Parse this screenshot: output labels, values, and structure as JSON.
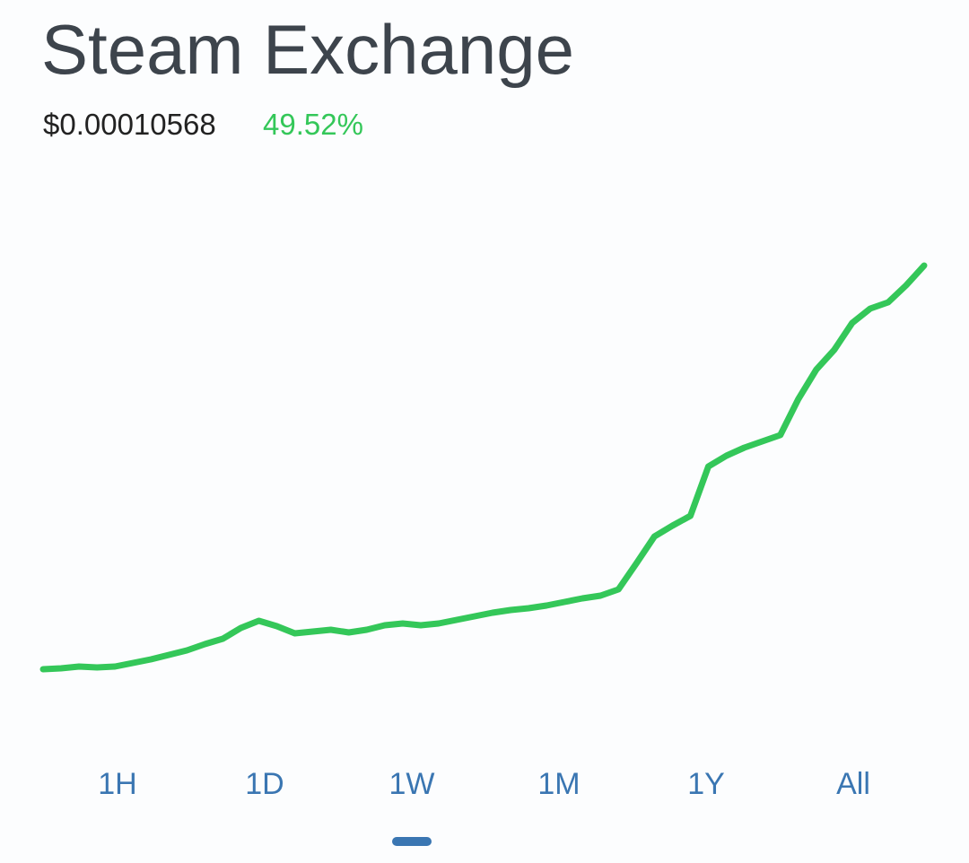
{
  "header": {
    "title": "Steam Exchange",
    "price": "$0.00010568",
    "change": "49.52%"
  },
  "chart_data": {
    "type": "line",
    "color": "#34c759",
    "values": [
      54,
      55,
      57,
      56,
      57,
      61,
      65,
      70,
      75,
      82,
      88,
      100,
      108,
      102,
      94,
      96,
      98,
      95,
      98,
      103,
      105,
      103,
      105,
      109,
      113,
      117,
      120,
      122,
      125,
      129,
      133,
      136,
      143,
      172,
      202,
      214,
      225,
      280,
      292,
      301,
      308,
      315,
      355,
      388,
      410,
      440,
      456,
      463,
      482,
      504
    ],
    "ylim": [
      0,
      560
    ]
  },
  "tabs": {
    "items": [
      "1H",
      "1D",
      "1W",
      "1M",
      "1Y",
      "All"
    ],
    "selected": 2
  }
}
